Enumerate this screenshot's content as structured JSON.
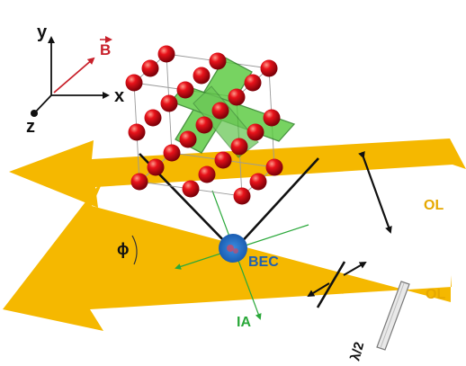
{
  "labels": {
    "axis_y": "y",
    "axis_x": "x",
    "axis_z": "z",
    "field": "B",
    "angle": "ϕ",
    "bec": "BEC",
    "ia": "IA",
    "ol_upper": "OL",
    "ol_lower": "OL",
    "waveplate": "λ/2"
  },
  "colors": {
    "beam": "#f5b800",
    "lattice_atom": "#e8121a",
    "green_beam": "#3fbf2e",
    "bec_blue": "#1f6fc8",
    "field_arrow": "#c8202a",
    "ia_text": "#2aa83a",
    "bec_text": "#1f5fb0",
    "ol_text": "#e6a800"
  }
}
